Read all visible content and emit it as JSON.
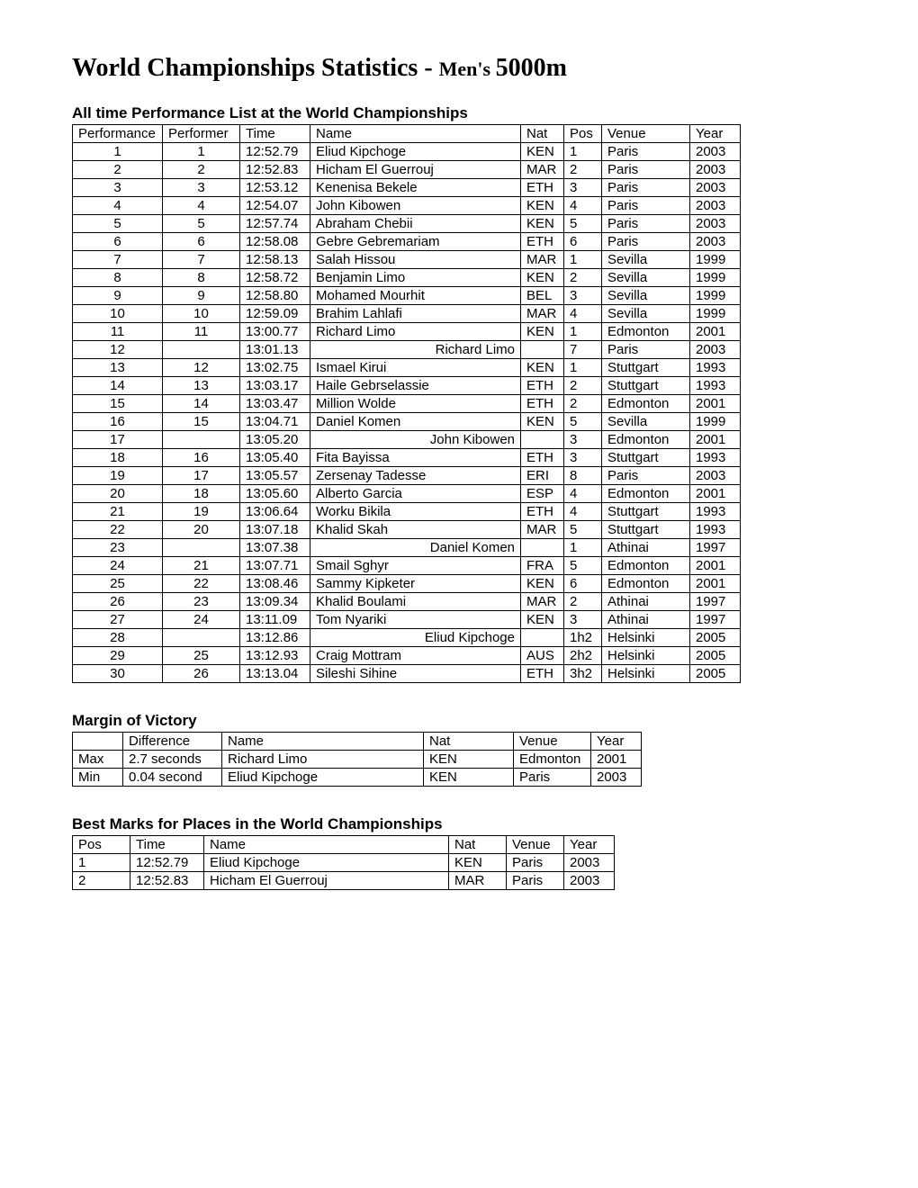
{
  "title_main": "World Championships Statistics - ",
  "title_sub": "Men's ",
  "title_event": "5000m",
  "perf_heading": "All time Performance List at the World Championships",
  "perf_columns": [
    "Performance",
    "Performer",
    "Time",
    "Name",
    "Nat",
    "Pos",
    "Venue",
    "Year"
  ],
  "perf_rows": [
    {
      "performance": "1",
      "performer": "1",
      "time": "12:52.79",
      "name": "Eliud Kipchoge",
      "nat": "KEN",
      "pos": "1",
      "venue": "Paris",
      "year": "2003",
      "right": false
    },
    {
      "performance": "2",
      "performer": "2",
      "time": "12:52.83",
      "name": "Hicham El Guerrouj",
      "nat": "MAR",
      "pos": "2",
      "venue": "Paris",
      "year": "2003",
      "right": false
    },
    {
      "performance": "3",
      "performer": "3",
      "time": "12:53.12",
      "name": "Kenenisa Bekele",
      "nat": "ETH",
      "pos": "3",
      "venue": "Paris",
      "year": "2003",
      "right": false
    },
    {
      "performance": "4",
      "performer": "4",
      "time": "12:54.07",
      "name": "John Kibowen",
      "nat": "KEN",
      "pos": "4",
      "venue": "Paris",
      "year": "2003",
      "right": false
    },
    {
      "performance": "5",
      "performer": "5",
      "time": "12:57.74",
      "name": "Abraham Chebii",
      "nat": "KEN",
      "pos": "5",
      "venue": "Paris",
      "year": "2003",
      "right": false
    },
    {
      "performance": "6",
      "performer": "6",
      "time": "12:58.08",
      "name": "Gebre Gebremariam",
      "nat": "ETH",
      "pos": "6",
      "venue": "Paris",
      "year": "2003",
      "right": false
    },
    {
      "performance": "7",
      "performer": "7",
      "time": "12:58.13",
      "name": "Salah Hissou",
      "nat": "MAR",
      "pos": "1",
      "venue": "Sevilla",
      "year": "1999",
      "right": false
    },
    {
      "performance": "8",
      "performer": "8",
      "time": "12:58.72",
      "name": "Benjamin Limo",
      "nat": "KEN",
      "pos": "2",
      "venue": "Sevilla",
      "year": "1999",
      "right": false
    },
    {
      "performance": "9",
      "performer": "9",
      "time": "12:58.80",
      "name": "Mohamed Mourhit",
      "nat": "BEL",
      "pos": "3",
      "venue": "Sevilla",
      "year": "1999",
      "right": false
    },
    {
      "performance": "10",
      "performer": "10",
      "time": "12:59.09",
      "name": "Brahim Lahlafi",
      "nat": "MAR",
      "pos": "4",
      "venue": "Sevilla",
      "year": "1999",
      "right": false
    },
    {
      "performance": "11",
      "performer": "11",
      "time": "13:00.77",
      "name": "Richard Limo",
      "nat": "KEN",
      "pos": "1",
      "venue": "Edmonton",
      "year": "2001",
      "right": false
    },
    {
      "performance": "12",
      "performer": "",
      "time": "13:01.13",
      "name": "Richard Limo",
      "nat": "",
      "pos": "7",
      "venue": "Paris",
      "year": "2003",
      "right": true
    },
    {
      "performance": "13",
      "performer": "12",
      "time": "13:02.75",
      "name": "Ismael Kirui",
      "nat": "KEN",
      "pos": "1",
      "venue": "Stuttgart",
      "year": "1993",
      "right": false
    },
    {
      "performance": "14",
      "performer": "13",
      "time": "13:03.17",
      "name": "Haile Gebrselassie",
      "nat": "ETH",
      "pos": "2",
      "venue": "Stuttgart",
      "year": "1993",
      "right": false
    },
    {
      "performance": "15",
      "performer": "14",
      "time": "13:03.47",
      "name": "Million Wolde",
      "nat": "ETH",
      "pos": "2",
      "venue": "Edmonton",
      "year": "2001",
      "right": false
    },
    {
      "performance": "16",
      "performer": "15",
      "time": "13:04.71",
      "name": "Daniel Komen",
      "nat": "KEN",
      "pos": "5",
      "venue": "Sevilla",
      "year": "1999",
      "right": false
    },
    {
      "performance": "17",
      "performer": "",
      "time": "13:05.20",
      "name": "John Kibowen",
      "nat": "",
      "pos": "3",
      "venue": "Edmonton",
      "year": "2001",
      "right": true
    },
    {
      "performance": "18",
      "performer": "16",
      "time": "13:05.40",
      "name": "Fita Bayissa",
      "nat": "ETH",
      "pos": "3",
      "venue": "Stuttgart",
      "year": "1993",
      "right": false
    },
    {
      "performance": "19",
      "performer": "17",
      "time": "13:05.57",
      "name": "Zersenay Tadesse",
      "nat": "ERI",
      "pos": "8",
      "venue": "Paris",
      "year": "2003",
      "right": false
    },
    {
      "performance": "20",
      "performer": "18",
      "time": "13:05.60",
      "name": "Alberto Garcia",
      "nat": "ESP",
      "pos": "4",
      "venue": "Edmonton",
      "year": "2001",
      "right": false
    },
    {
      "performance": "21",
      "performer": "19",
      "time": "13:06.64",
      "name": "Worku Bikila",
      "nat": "ETH",
      "pos": "4",
      "venue": "Stuttgart",
      "year": "1993",
      "right": false
    },
    {
      "performance": "22",
      "performer": "20",
      "time": "13:07.18",
      "name": "Khalid Skah",
      "nat": "MAR",
      "pos": "5",
      "venue": "Stuttgart",
      "year": "1993",
      "right": false
    },
    {
      "performance": "23",
      "performer": "",
      "time": "13:07.38",
      "name": "Daniel Komen",
      "nat": "",
      "pos": "1",
      "venue": "Athinai",
      "year": "1997",
      "right": true
    },
    {
      "performance": "24",
      "performer": "21",
      "time": "13:07.71",
      "name": "Smail Sghyr",
      "nat": "FRA",
      "pos": "5",
      "venue": "Edmonton",
      "year": "2001",
      "right": false
    },
    {
      "performance": "25",
      "performer": "22",
      "time": "13:08.46",
      "name": "Sammy Kipketer",
      "nat": "KEN",
      "pos": "6",
      "venue": "Edmonton",
      "year": "2001",
      "right": false
    },
    {
      "performance": "26",
      "performer": "23",
      "time": "13:09.34",
      "name": "Khalid Boulami",
      "nat": "MAR",
      "pos": "2",
      "venue": "Athinai",
      "year": "1997",
      "right": false
    },
    {
      "performance": "27",
      "performer": "24",
      "time": "13:11.09",
      "name": "Tom Nyariki",
      "nat": "KEN",
      "pos": "3",
      "venue": "Athinai",
      "year": "1997",
      "right": false
    },
    {
      "performance": "28",
      "performer": "",
      "time": "13:12.86",
      "name": "Eliud Kipchoge",
      "nat": "",
      "pos": "1h2",
      "venue": "Helsinki",
      "year": "2005",
      "right": true
    },
    {
      "performance": "29",
      "performer": "25",
      "time": "13:12.93",
      "name": "Craig Mottram",
      "nat": "AUS",
      "pos": "2h2",
      "venue": "Helsinki",
      "year": "2005",
      "right": false
    },
    {
      "performance": "30",
      "performer": "26",
      "time": "13:13.04",
      "name": "Sileshi Sihine",
      "nat": "ETH",
      "pos": "3h2",
      "venue": "Helsinki",
      "year": "2005",
      "right": false
    }
  ],
  "mov_heading": "Margin of Victory",
  "mov_columns": [
    "",
    "Difference",
    "Name",
    "Nat",
    "Venue",
    "Year"
  ],
  "mov_rows": [
    {
      "label": "Max",
      "diff": "2.7 seconds",
      "name": "Richard Limo",
      "nat": "KEN",
      "venue": "Edmonton",
      "year": "2001"
    },
    {
      "label": "Min",
      "diff": "0.04 second",
      "name": "Eliud Kipchoge",
      "nat": "KEN",
      "venue": "Paris",
      "year": "2003"
    }
  ],
  "best_heading": "Best Marks for Places in the World Championships",
  "best_columns": [
    "Pos",
    "Time",
    "Name",
    "Nat",
    "Venue",
    "Year"
  ],
  "best_rows": [
    {
      "pos": "1",
      "time": "12:52.79",
      "name": "Eliud Kipchoge",
      "nat": "KEN",
      "venue": "Paris",
      "year": "2003"
    },
    {
      "pos": "2",
      "time": "12:52.83",
      "name": "Hicham El Guerrouj",
      "nat": "MAR",
      "venue": "Paris",
      "year": "2003"
    }
  ]
}
